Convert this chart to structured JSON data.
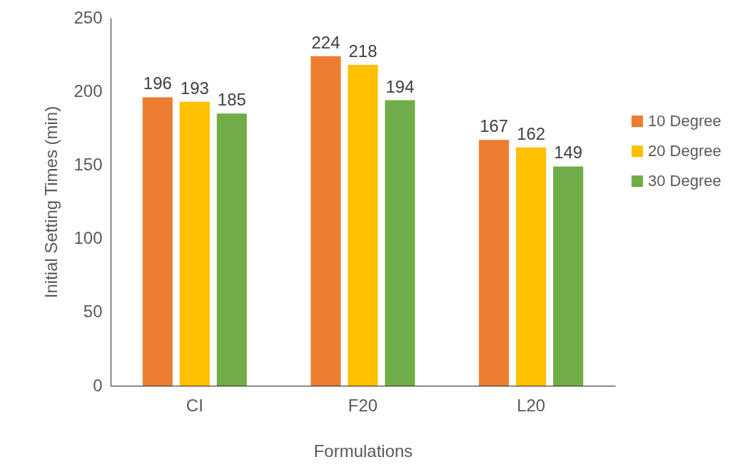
{
  "chart_data": {
    "type": "bar",
    "xlabel": "Formulations",
    "ylabel": "Initial Setting Times (min)",
    "categories": [
      "CI",
      "F20",
      "L20"
    ],
    "series": [
      {
        "name": "10 Degree",
        "color": "#ed7d31",
        "values": [
          196,
          224,
          167
        ]
      },
      {
        "name": "20 Degree",
        "color": "#ffc000",
        "values": [
          193,
          218,
          162
        ]
      },
      {
        "name": "30 Degree",
        "color": "#70ad47",
        "values": [
          185,
          194,
          149
        ]
      }
    ],
    "ylim": [
      0,
      250
    ],
    "yticks": [
      0,
      50,
      100,
      150,
      200,
      250
    ],
    "grid": false,
    "legend": "right",
    "data_labels": true
  }
}
